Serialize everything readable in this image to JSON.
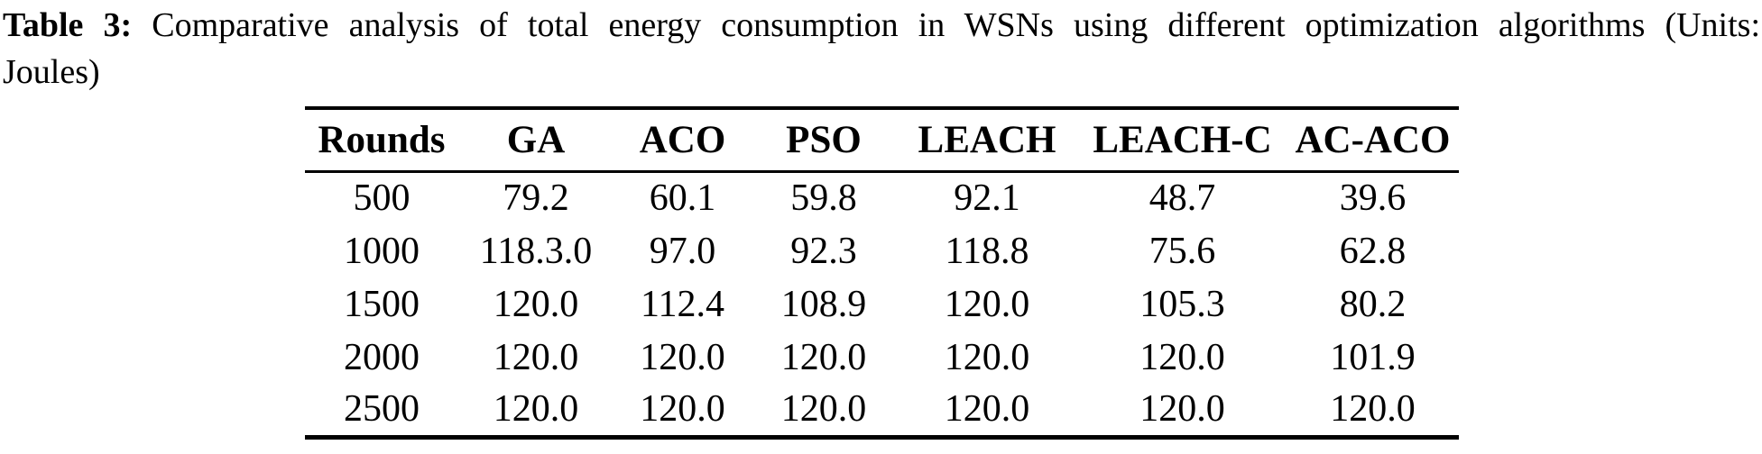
{
  "caption": {
    "label": "Table 3:",
    "line1_rest": "Comparative analysis of total energy consumption in WSNs using different optimization algorithms (Units:",
    "line2": "Joules)"
  },
  "table": {
    "headers": [
      "Rounds",
      "GA",
      "ACO",
      "PSO",
      "LEACH",
      "LEACH-C",
      "AC-ACO"
    ],
    "rows": [
      {
        "cells": [
          "500",
          "79.2",
          "60.1",
          "59.8",
          "92.1",
          "48.7",
          "39.6"
        ]
      },
      {
        "cells": [
          "1000",
          "118.3.0",
          "97.0",
          "92.3",
          "118.8",
          "75.6",
          "62.8"
        ]
      },
      {
        "cells": [
          "1500",
          "120.0",
          "112.4",
          "108.9",
          "120.0",
          "105.3",
          "80.2"
        ]
      },
      {
        "cells": [
          "2000",
          "120.0",
          "120.0",
          "120.0",
          "120.0",
          "120.0",
          "101.9"
        ]
      },
      {
        "cells": [
          "2500",
          "120.0",
          "120.0",
          "120.0",
          "120.0",
          "120.0",
          "120.0"
        ]
      }
    ]
  },
  "colors": {
    "text": "#000000",
    "background": "#ffffff",
    "rule": "#000000"
  }
}
